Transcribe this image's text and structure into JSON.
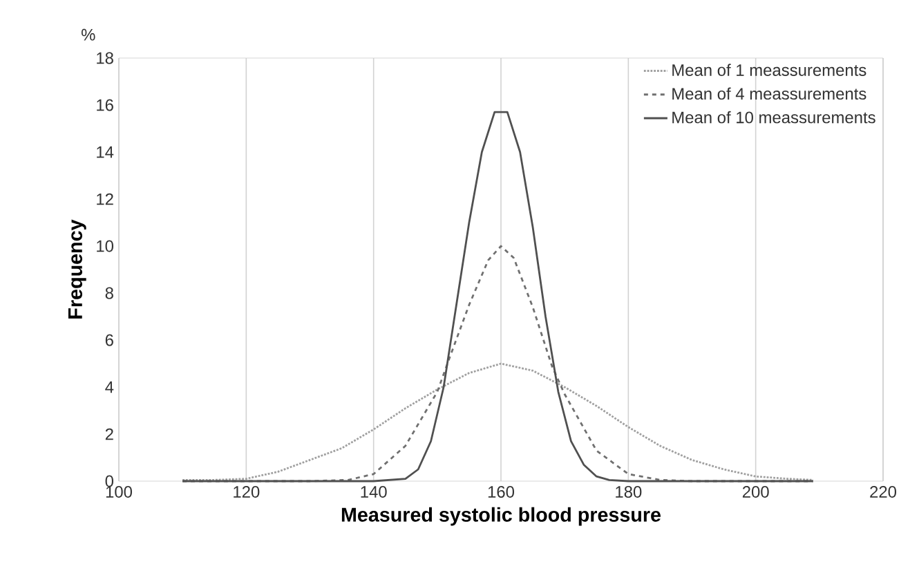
{
  "chart_data": {
    "type": "line",
    "xlabel": "Measured systolic blood pressure",
    "ylabel": "Frequency",
    "annotations": [
      "%"
    ],
    "xlim": [
      100,
      220
    ],
    "ylim": [
      0,
      18
    ],
    "xticks": [
      100,
      120,
      140,
      160,
      180,
      200,
      220
    ],
    "yticks": [
      0,
      2,
      4,
      6,
      8,
      10,
      12,
      14,
      16,
      18
    ],
    "grid": "x",
    "legend": "top right",
    "series": [
      {
        "name": "Mean of 1 meassurements",
        "color": "#a0a0a0",
        "line_style": "dotted",
        "x": [
          110,
          115,
          120,
          125,
          130,
          135,
          140,
          145,
          150,
          155,
          160,
          165,
          170,
          175,
          180,
          185,
          190,
          195,
          200,
          205,
          209
        ],
        "values": [
          0.05,
          0.05,
          0.1,
          0.4,
          0.9,
          1.4,
          2.2,
          3.1,
          3.9,
          4.6,
          5.0,
          4.7,
          4.0,
          3.2,
          2.3,
          1.5,
          0.9,
          0.5,
          0.2,
          0.1,
          0.05
        ]
      },
      {
        "name": "Mean of 4 meassurements",
        "color": "#707070",
        "line_style": "dashed",
        "x": [
          110,
          120,
          130,
          136,
          140,
          145,
          150,
          152,
          155,
          158,
          160,
          162,
          165,
          168,
          170,
          175,
          180,
          185,
          190,
          200,
          209
        ],
        "values": [
          0,
          0,
          0,
          0.05,
          0.3,
          1.5,
          3.8,
          5.3,
          7.5,
          9.4,
          10.0,
          9.5,
          7.4,
          4.9,
          3.7,
          1.3,
          0.3,
          0.05,
          0,
          0,
          0
        ]
      },
      {
        "name": "Mean of 10 meassurements",
        "color": "#505050",
        "line_style": "solid",
        "x": [
          110,
          120,
          130,
          140,
          145,
          147,
          149,
          151,
          153,
          155,
          157,
          159,
          161,
          163,
          165,
          167,
          169,
          171,
          173,
          175,
          177,
          180,
          190,
          200,
          209
        ],
        "values": [
          0,
          0,
          0,
          0,
          0.1,
          0.5,
          1.7,
          4.0,
          7.5,
          11.0,
          14.0,
          15.7,
          15.7,
          14.0,
          10.8,
          7.0,
          3.8,
          1.7,
          0.7,
          0.2,
          0.05,
          0,
          0,
          0,
          0
        ]
      }
    ]
  }
}
